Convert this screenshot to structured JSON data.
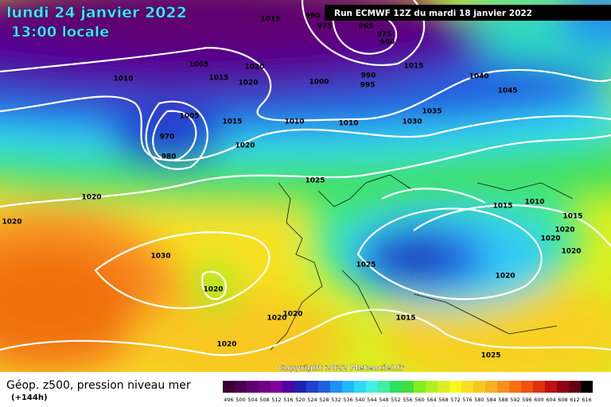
{
  "header": {
    "date": "lundi 24 janvier 2022",
    "time": "13:00 locale",
    "run": "Run ECMWF 12Z du mardi 18 janvier 2022"
  },
  "copyright": "Copyright 2022 Meteociel.fr",
  "legend": {
    "title": "Géop. z500, pression niveau mer",
    "lead": "(+144h)",
    "ticks": [
      496,
      500,
      504,
      508,
      512,
      516,
      520,
      524,
      528,
      532,
      536,
      540,
      544,
      548,
      552,
      556,
      560,
      564,
      568,
      572,
      576,
      580,
      584,
      588,
      592,
      596,
      600,
      604,
      608,
      612,
      616
    ],
    "colors": [
      "#3a0030",
      "#4a0050",
      "#600070",
      "#700088",
      "#8000a0",
      "#5000a0",
      "#2020b0",
      "#2040d0",
      "#2060e0",
      "#2090f0",
      "#20b8f8",
      "#30d8f8",
      "#40f0e0",
      "#40f0a0",
      "#30e060",
      "#40e040",
      "#80f020",
      "#b0f020",
      "#d8f020",
      "#f8f820",
      "#f8e020",
      "#f8c820",
      "#f8b020",
      "#f89020",
      "#f87010",
      "#f05010",
      "#e03010",
      "#c01010",
      "#900010",
      "#600010",
      "#000000"
    ]
  },
  "isobar_labels": [
    "1015",
    "990",
    "975",
    "965",
    "975",
    "980",
    "1005",
    "1010",
    "1015",
    "1020",
    "1020",
    "1000",
    "990",
    "995",
    "1015",
    "1040",
    "1045",
    "1035",
    "1030",
    "1010",
    "1010",
    "1015",
    "1005",
    "970",
    "980",
    "1020",
    "1025",
    "1020",
    "1020",
    "1030",
    "1020",
    "1015",
    "1010",
    "1015",
    "1020",
    "1020",
    "1020",
    "1025",
    "1020",
    "1020",
    "1020",
    "1015",
    "1020",
    "1025"
  ]
}
